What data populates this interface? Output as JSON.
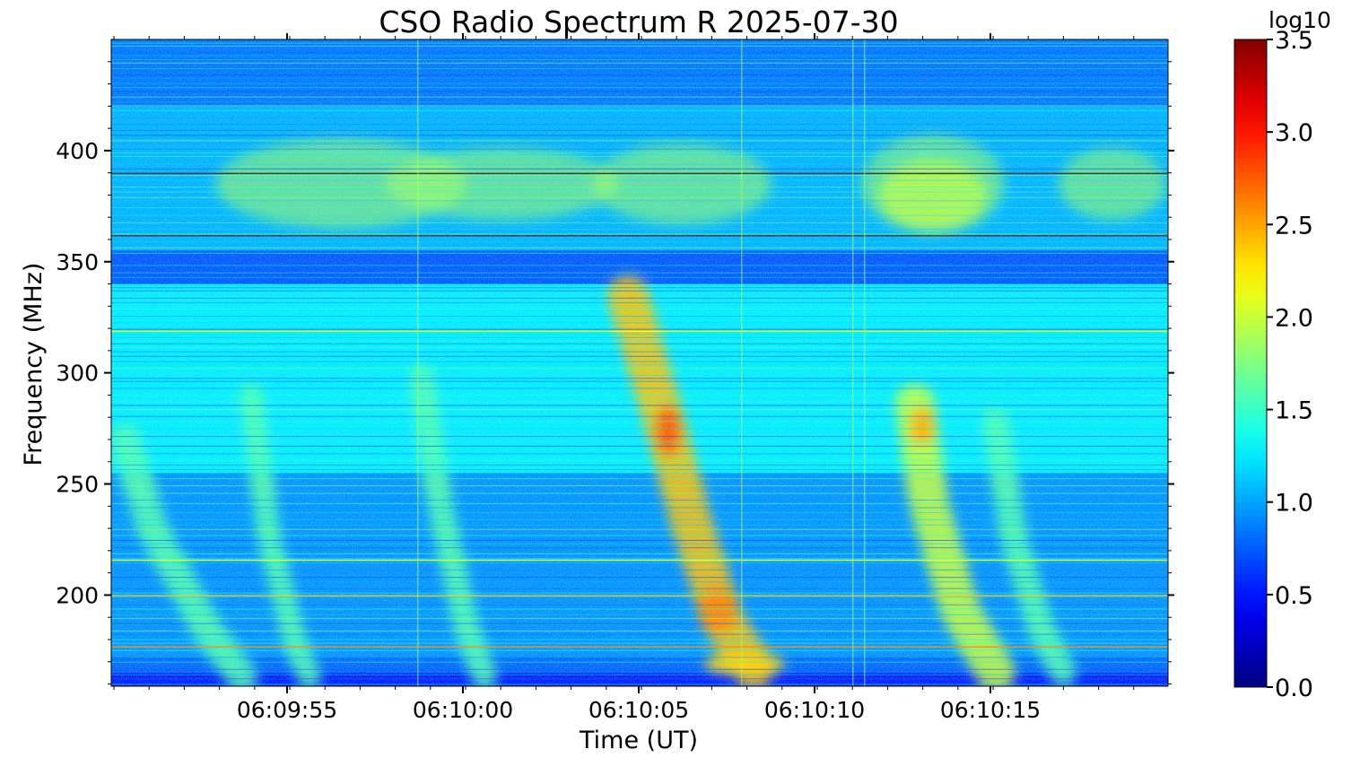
{
  "chart_data": {
    "type": "heatmap",
    "title": "CSO Radio Spectrum R 2025-07-30",
    "xlabel": "Time (UT)",
    "ylabel": "Frequency (MHz)",
    "x_ticks": [
      "06:09:55",
      "06:10:00",
      "06:10:05",
      "06:10:10",
      "06:10:15"
    ],
    "y_ticks": [
      200,
      250,
      300,
      350,
      400
    ],
    "ylim": [
      159,
      450
    ],
    "colorbar": {
      "label": "log10",
      "ticks": [
        0.0,
        0.5,
        1.0,
        1.5,
        2.0,
        2.5,
        3.0,
        3.5
      ],
      "tick_labels": [
        "0.0",
        "0.5",
        "1.0",
        "1.5",
        "2.0",
        "2.5",
        "3.0",
        "3.5"
      ],
      "range": [
        0.0,
        3.5
      ],
      "colormap": "jet"
    },
    "background_level": 1.1,
    "features": [
      {
        "name": "drift burst",
        "freq_range_mhz": [
          165,
          270
        ],
        "intensity": 1.6
      },
      {
        "name": "drift burst",
        "freq_range_mhz": [
          165,
          330
        ],
        "intensity": 2.4
      },
      {
        "name": "drift burst",
        "freq_range_mhz": [
          165,
          280
        ],
        "intensity": 2.0
      },
      {
        "name": "emission patch",
        "freq_range_mhz": [
          355,
          415
        ],
        "intensity": 1.9
      }
    ]
  }
}
